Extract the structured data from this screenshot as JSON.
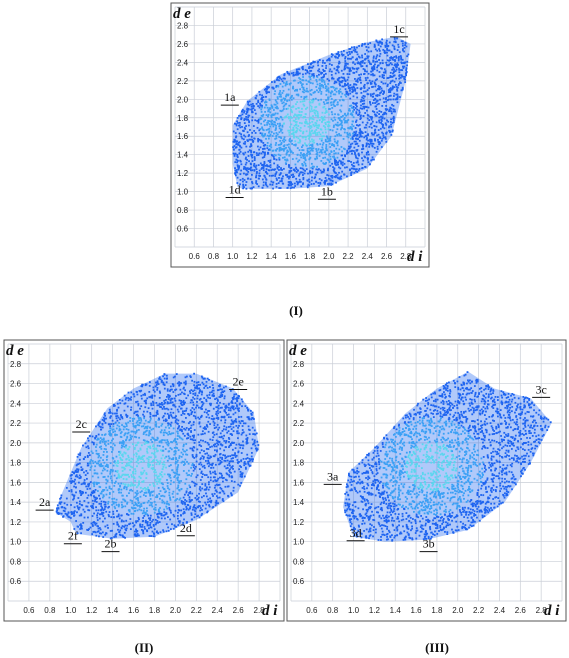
{
  "chart_data": [
    {
      "type": "scatter",
      "caption": "(I)",
      "xlabel": "d i",
      "ylabel": "d e",
      "xticks": [
        "0.6",
        "0.8",
        "1.0",
        "1.2",
        "1.4",
        "1.6",
        "1.8",
        "2.0",
        "2.2",
        "2.4",
        "2.6",
        "2.8"
      ],
      "yticks": [
        "0.6",
        "0.8",
        "1.0",
        "1.2",
        "1.4",
        "1.6",
        "1.8",
        "2.0",
        "2.2",
        "2.4",
        "2.6",
        "2.8"
      ],
      "xlim": [
        0.4,
        3.0
      ],
      "ylim": [
        0.4,
        3.0
      ],
      "grid": true,
      "color": "#1e64f0",
      "hull": [
        [
          1.05,
          1.05
        ],
        [
          1.1,
          1.03
        ],
        [
          1.6,
          1.03
        ],
        [
          2.0,
          1.06
        ],
        [
          2.4,
          1.25
        ],
        [
          2.65,
          1.6
        ],
        [
          2.8,
          2.2
        ],
        [
          2.85,
          2.6
        ],
        [
          2.7,
          2.68
        ],
        [
          2.4,
          2.62
        ],
        [
          2.0,
          2.48
        ],
        [
          1.5,
          2.27
        ],
        [
          1.15,
          1.98
        ],
        [
          1.0,
          1.72
        ],
        [
          1.0,
          1.3
        ]
      ],
      "labels": [
        {
          "text": "1a",
          "x": 0.97,
          "y": 1.98
        },
        {
          "text": "1b",
          "x": 1.98,
          "y": 0.96
        },
        {
          "text": "1c",
          "x": 2.73,
          "y": 2.72
        },
        {
          "text": "1d",
          "x": 1.02,
          "y": 0.98
        }
      ]
    },
    {
      "type": "scatter",
      "caption": "(II)",
      "xlabel": "d i",
      "ylabel": "d e",
      "xticks": [
        "0.6",
        "0.8",
        "1.0",
        "1.2",
        "1.4",
        "1.6",
        "1.8",
        "2.0",
        "2.2",
        "2.4",
        "2.6",
        "2.8"
      ],
      "yticks": [
        "0.6",
        "0.8",
        "1.0",
        "1.2",
        "1.4",
        "1.6",
        "1.8",
        "2.0",
        "2.2",
        "2.4",
        "2.6",
        "2.8"
      ],
      "xlim": [
        0.4,
        3.0
      ],
      "ylim": [
        0.4,
        3.0
      ],
      "grid": true,
      "color": "#1e64f0",
      "hull": [
        [
          1.05,
          1.08
        ],
        [
          1.4,
          1.03
        ],
        [
          1.8,
          1.05
        ],
        [
          2.2,
          1.22
        ],
        [
          2.6,
          1.5
        ],
        [
          2.8,
          1.95
        ],
        [
          2.75,
          2.3
        ],
        [
          2.55,
          2.55
        ],
        [
          2.2,
          2.7
        ],
        [
          1.9,
          2.7
        ],
        [
          1.6,
          2.55
        ],
        [
          1.35,
          2.35
        ],
        [
          1.1,
          1.95
        ],
        [
          0.9,
          1.45
        ],
        [
          0.85,
          1.3
        ],
        [
          1.0,
          1.2
        ]
      ],
      "labels": [
        {
          "text": "2a",
          "x": 0.75,
          "y": 1.36
        },
        {
          "text": "2b",
          "x": 1.38,
          "y": 0.94
        },
        {
          "text": "2c",
          "x": 1.1,
          "y": 2.15
        },
        {
          "text": "2d",
          "x": 2.1,
          "y": 1.1
        },
        {
          "text": "2e",
          "x": 2.6,
          "y": 2.58
        },
        {
          "text": "2f",
          "x": 1.02,
          "y": 1.02
        }
      ]
    },
    {
      "type": "scatter",
      "caption": "(III)",
      "xlabel": "d i",
      "ylabel": "d e",
      "xticks": [
        "0.6",
        "0.8",
        "1.0",
        "1.2",
        "1.4",
        "1.6",
        "1.8",
        "2.0",
        "2.2",
        "2.4",
        "2.6",
        "2.8"
      ],
      "yticks": [
        "0.6",
        "0.8",
        "1.0",
        "1.2",
        "1.4",
        "1.6",
        "1.8",
        "2.0",
        "2.2",
        "2.4",
        "2.6",
        "2.8"
      ],
      "xlim": [
        0.4,
        3.0
      ],
      "ylim": [
        0.4,
        3.0
      ],
      "grid": true,
      "color": "#1e64f0",
      "hull": [
        [
          1.0,
          1.05
        ],
        [
          1.3,
          1.0
        ],
        [
          1.7,
          1.02
        ],
        [
          2.1,
          1.12
        ],
        [
          2.45,
          1.4
        ],
        [
          2.7,
          1.8
        ],
        [
          2.9,
          2.2
        ],
        [
          2.7,
          2.45
        ],
        [
          2.35,
          2.55
        ],
        [
          2.1,
          2.72
        ],
        [
          1.8,
          2.55
        ],
        [
          1.5,
          2.3
        ],
        [
          1.2,
          1.95
        ],
        [
          0.95,
          1.7
        ],
        [
          0.9,
          1.35
        ]
      ],
      "labels": [
        {
          "text": "3a",
          "x": 0.8,
          "y": 1.62
        },
        {
          "text": "3b",
          "x": 1.72,
          "y": 0.94
        },
        {
          "text": "3c",
          "x": 2.8,
          "y": 2.5
        },
        {
          "text": "3d",
          "x": 1.02,
          "y": 1.05
        }
      ]
    }
  ]
}
